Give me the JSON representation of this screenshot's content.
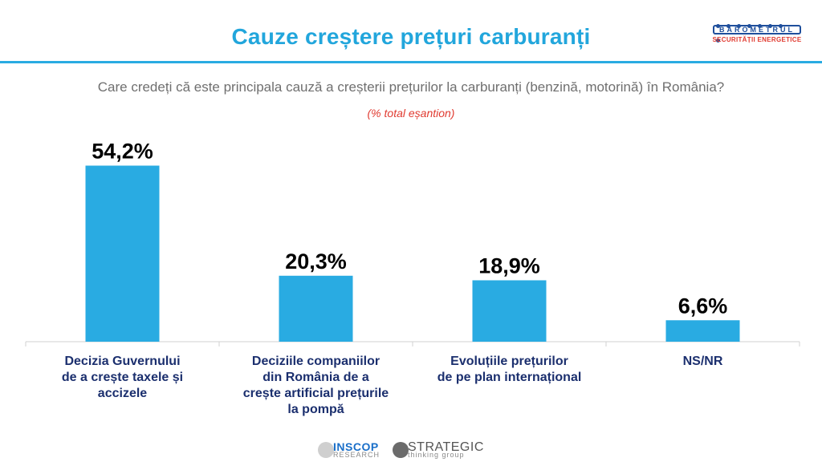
{
  "header": {
    "title": "Cauze creștere prețuri carburanți",
    "question": "Care credeți că este principala cauză a creșterii prețurilor la carburanți (benzină, motorină) în România?",
    "note": "(% total eșantion)"
  },
  "logo": {
    "name": "BAROMETRUL",
    "subtitle": "SECURITĂȚII ENERGETICE"
  },
  "footer": {
    "inscop_name": "INSCOP",
    "inscop_sub": "RESEARCH",
    "strategic_name": "STRATEGIC",
    "strategic_sub": "thinking group"
  },
  "colors": {
    "bar": "#29abe2",
    "title": "#22a6dc",
    "category_text": "#1b2f6e",
    "note": "#e03a30"
  },
  "chart_data": {
    "type": "bar",
    "categories": [
      "Decizia Guvernului\nde a crește taxele și\naccizele",
      "Deciziile companiilor\ndin România de a\ncrește artificial prețurile\nla pompă",
      "Evoluțiile prețurilor\nde pe plan internațional",
      "NS/NR"
    ],
    "values": [
      54.2,
      20.3,
      18.9,
      6.6
    ],
    "value_labels": [
      "54,2%",
      "20,3%",
      "18,9%",
      "6,6%"
    ],
    "ylim": [
      0,
      60
    ],
    "grid": false
  }
}
